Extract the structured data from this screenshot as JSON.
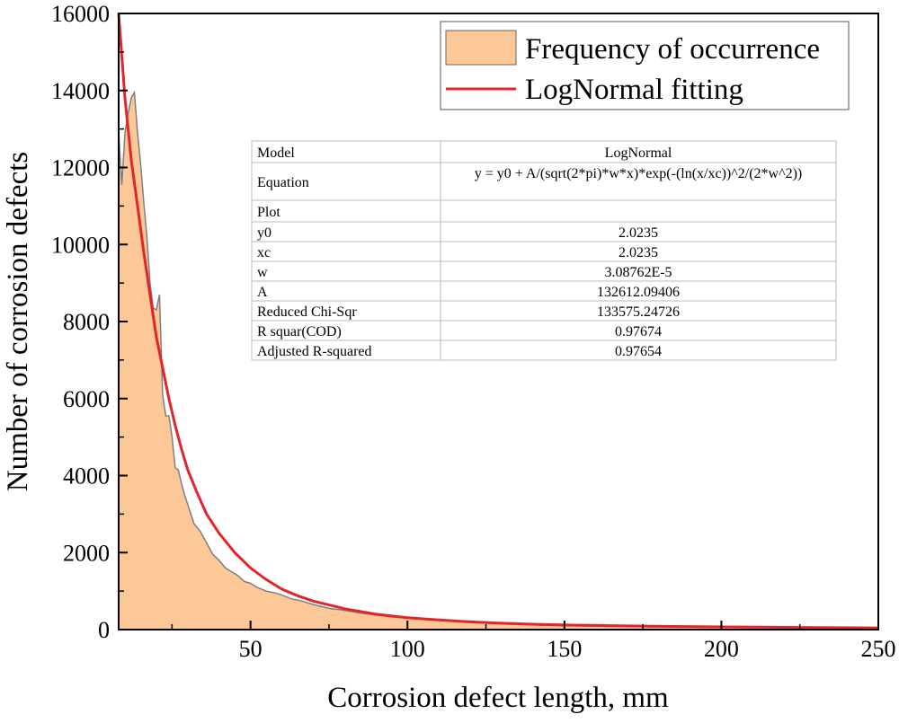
{
  "chart_data": {
    "type": "area",
    "title": "",
    "xlabel": "Corrosion defect length, mm",
    "ylabel": "Number of corrosion defects",
    "xlim": [
      8,
      250
    ],
    "ylim": [
      0,
      16000
    ],
    "xticks": [
      50,
      100,
      150,
      200,
      250
    ],
    "yticks": [
      0,
      2000,
      4000,
      6000,
      8000,
      10000,
      12000,
      14000,
      16000
    ],
    "legend_position": "top-right",
    "colors": {
      "fill": "#fcc898",
      "outline": "#7f7f7f",
      "fit": "#e3242b",
      "axis": "#000000",
      "table_grid": "#bbbbbb"
    },
    "series": [
      {
        "name": "Frequency of occurrence",
        "kind": "area",
        "x": [
          8,
          9,
          10,
          11,
          12,
          13,
          14,
          15,
          16,
          17,
          18,
          19,
          20,
          21,
          22,
          23,
          24,
          25,
          26,
          27,
          28,
          29,
          30,
          31,
          32,
          33,
          34,
          35,
          36,
          37,
          38,
          40,
          42,
          44,
          46,
          48,
          50,
          52,
          55,
          58,
          60,
          63,
          66,
          70,
          75,
          80,
          85,
          90,
          95,
          100,
          105,
          110,
          115,
          120,
          125,
          130,
          135,
          140,
          150,
          160,
          170,
          180,
          190,
          200,
          210,
          220,
          230,
          240,
          250
        ],
        "values": [
          12900,
          11550,
          12900,
          13400,
          13800,
          13950,
          12900,
          12100,
          11100,
          10200,
          9000,
          8350,
          8300,
          8700,
          6100,
          5550,
          5550,
          5000,
          4200,
          4150,
          3800,
          3500,
          3250,
          3000,
          2750,
          2650,
          2550,
          2400,
          2250,
          2100,
          1950,
          1800,
          1600,
          1500,
          1400,
          1250,
          1200,
          1100,
          1000,
          950,
          900,
          800,
          750,
          650,
          550,
          500,
          430,
          380,
          330,
          300,
          270,
          250,
          220,
          190,
          170,
          150,
          130,
          120,
          100,
          90,
          80,
          70,
          65,
          60,
          55,
          50,
          45,
          40,
          35
        ]
      },
      {
        "name": "LogNormal fitting",
        "kind": "line",
        "x": [
          8,
          10,
          12,
          14,
          16,
          18,
          20,
          22,
          24,
          26,
          28,
          30,
          33,
          36,
          40,
          45,
          50,
          55,
          60,
          65,
          70,
          80,
          90,
          100,
          110,
          120,
          130,
          140,
          150,
          175,
          200,
          225,
          250
        ],
        "values": [
          16000,
          13800,
          12200,
          11000,
          9800,
          8700,
          7600,
          6800,
          6000,
          5300,
          4700,
          4150,
          3550,
          3000,
          2500,
          2000,
          1600,
          1300,
          1050,
          880,
          740,
          540,
          400,
          310,
          250,
          200,
          165,
          140,
          120,
          90,
          70,
          55,
          45
        ]
      }
    ]
  },
  "legend": {
    "items": [
      {
        "label": "Frequency of occurrence",
        "symbol": "filled-rect"
      },
      {
        "label": "LogNormal fitting",
        "symbol": "line"
      }
    ]
  },
  "fit_table": {
    "rows": [
      {
        "label": "Model",
        "value": "LogNormal"
      },
      {
        "label": "Equation",
        "value": "y = y0 + A/(sqrt(2*pi)*w*x)*exp(-(ln(x/xc))^2/(2*w^2))"
      },
      {
        "label": "Plot",
        "value": ""
      },
      {
        "label": "y0",
        "value": "2.0235"
      },
      {
        "label": "xc",
        "value": "2.0235"
      },
      {
        "label": "w",
        "value": "3.08762E-5"
      },
      {
        "label": "A",
        "value": "132612.09406"
      },
      {
        "label": "Reduced Chi-Sqr",
        "value": "133575.24726"
      },
      {
        "label": "R squar(COD)",
        "value": "0.97674"
      },
      {
        "label": "Adjusted R-squared",
        "value": "0.97654"
      }
    ]
  }
}
